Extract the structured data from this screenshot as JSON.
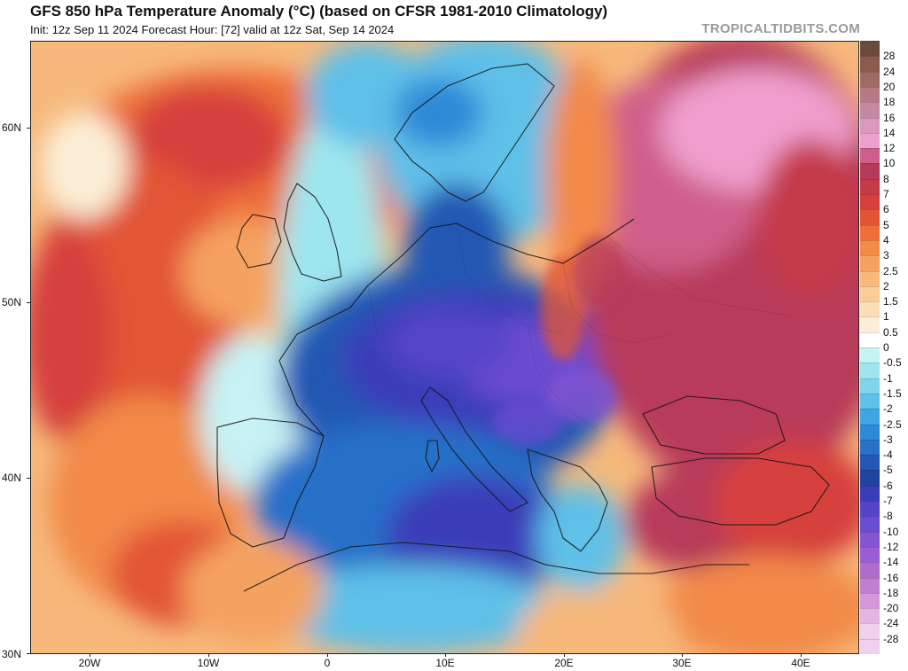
{
  "header": {
    "title": "GFS 850 hPa Temperature Anomaly (°C) (based on CFSR 1981-2010 Climatology)",
    "subtitle": "Init: 12z Sep 11 2024   Forecast Hour: [72]   valid at 12z Sat, Sep 14 2024",
    "brand": "TROPICALTIDBITS.COM"
  },
  "axes": {
    "lat_labels": [
      "60N",
      "50N",
      "40N",
      "30N"
    ],
    "lon_labels": [
      "20W",
      "10W",
      "0",
      "10E",
      "20E",
      "30E",
      "40E"
    ]
  },
  "colorbar": {
    "labels": [
      "28",
      "24",
      "20",
      "18",
      "16",
      "14",
      "12",
      "10",
      "8",
      "7",
      "6",
      "5",
      "4",
      "3",
      "2.5",
      "2",
      "1.5",
      "1",
      "0.5",
      "0",
      "-0.5",
      "-1",
      "-1.5",
      "-2",
      "-2.5",
      "-3",
      "-4",
      "-5",
      "-6",
      "-7",
      "-8",
      "-10",
      "-12",
      "-14",
      "-16",
      "-18",
      "-20",
      "-24",
      "-28"
    ],
    "colors": [
      "#6b4a3a",
      "#8a5a4c",
      "#a06a64",
      "#b57a86",
      "#c58aa2",
      "#da98bc",
      "#ef9fcd",
      "#cf5f8a",
      "#b83a5a",
      "#c43a48",
      "#d6403c",
      "#e25534",
      "#ee7038",
      "#f28a48",
      "#f5a260",
      "#f7b97c",
      "#f8cd98",
      "#f9deb6",
      "#fbeed6",
      "#ffffff",
      "#c8f2f4",
      "#9ee6ee",
      "#7fd6ea",
      "#5fc0e8",
      "#3fa6e4",
      "#2d8ad8",
      "#2870c8",
      "#2458b4",
      "#2244a0",
      "#3a3cb8",
      "#5444c8",
      "#6a4cd0",
      "#8454d4",
      "#9a5ed4",
      "#b06ccc",
      "#c27ed0",
      "#d498d8",
      "#e4b4e2",
      "#f0d0ec"
    ]
  }
}
